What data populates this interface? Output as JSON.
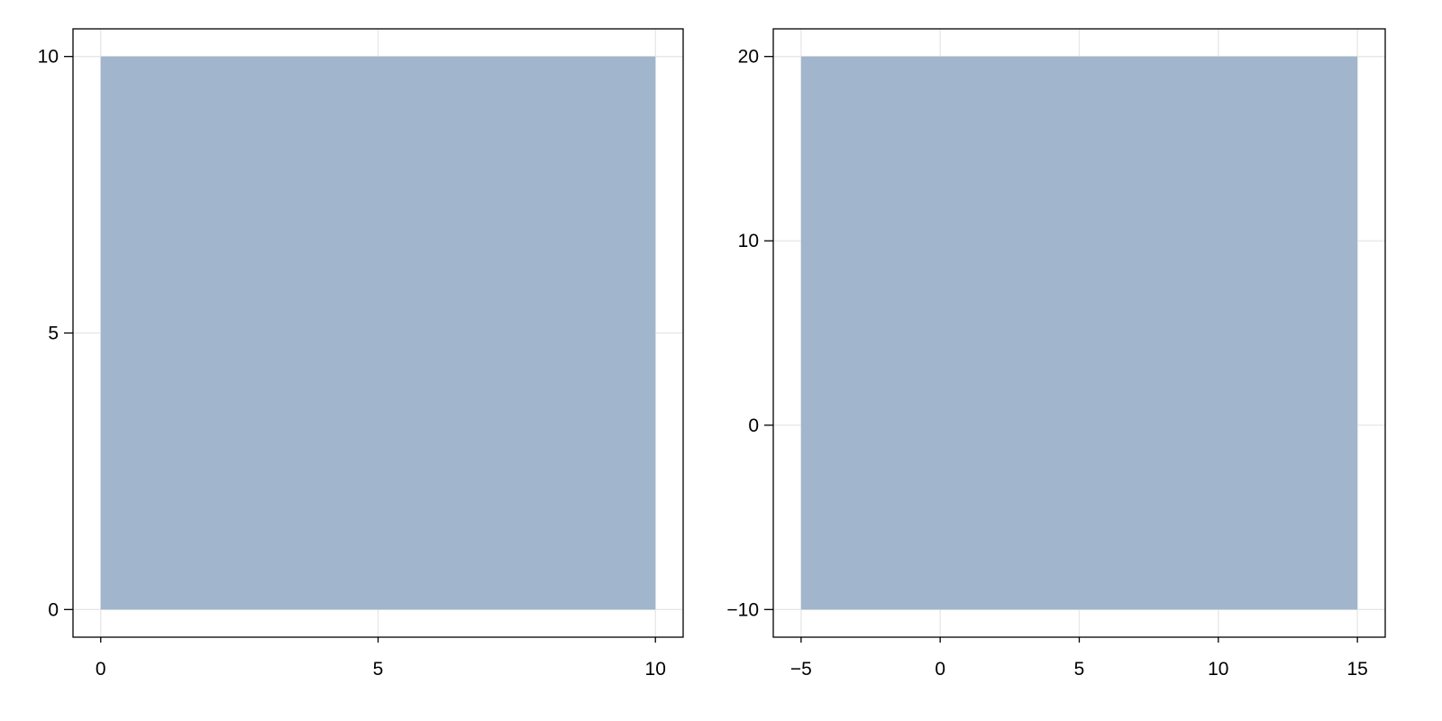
{
  "chart_data": [
    {
      "type": "area",
      "title": "",
      "xlabel": "",
      "ylabel": "",
      "xlim": [
        -0.5,
        10.5
      ],
      "ylim": [
        -0.5,
        10.5
      ],
      "xticks": [
        0,
        5,
        10
      ],
      "yticks": [
        0,
        5,
        10
      ],
      "xtick_labels": [
        "0",
        "5",
        "10"
      ],
      "ytick_labels": [
        "0",
        "5",
        "10"
      ],
      "grid": true,
      "fill_color": "#a1b5cd",
      "rectangle": {
        "x": [
          0,
          10
        ],
        "y": [
          0,
          10
        ]
      }
    },
    {
      "type": "area",
      "title": "",
      "xlabel": "",
      "ylabel": "",
      "xlim": [
        -6,
        16
      ],
      "ylim": [
        -11.5,
        21.5
      ],
      "xticks": [
        -5,
        0,
        5,
        10,
        15
      ],
      "yticks": [
        -10,
        0,
        10,
        20
      ],
      "xtick_labels": [
        "−5",
        "0",
        "5",
        "10",
        "15"
      ],
      "ytick_labels": [
        "−10",
        "0",
        "10",
        "20"
      ],
      "grid": true,
      "fill_color": "#a1b5cd",
      "rectangle": {
        "x": [
          -5,
          15
        ],
        "y": [
          -10,
          20
        ]
      }
    }
  ]
}
